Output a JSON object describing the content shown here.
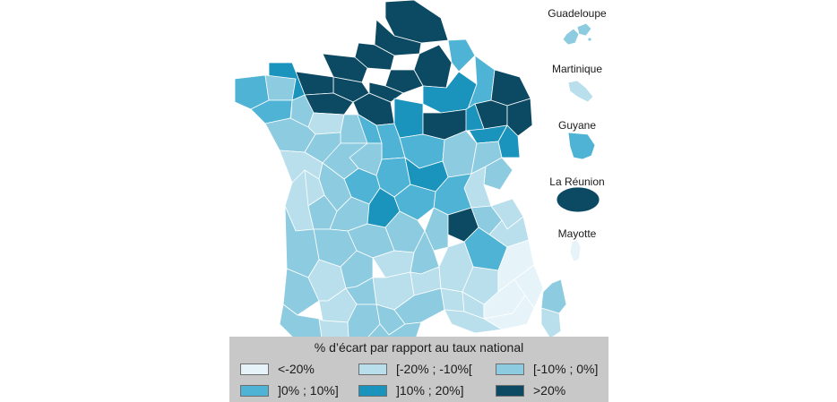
{
  "territories": [
    {
      "name": "Guadeloupe",
      "class_index": 2
    },
    {
      "name": "Martinique",
      "class_index": 1
    },
    {
      "name": "Guyane",
      "class_index": 3
    },
    {
      "name": "La Réunion",
      "class_index": 5
    },
    {
      "name": "Mayotte",
      "class_index": 0
    }
  ],
  "legend": {
    "title": "% d’écart par rapport au taux national",
    "classes": [
      {
        "label": "<-20%",
        "color": "#e6f3f8"
      },
      {
        "label": "[-20% ; -10%[",
        "color": "#b9dfec"
      },
      {
        "label": "[-10% ; 0%]",
        "color": "#8dcbe0"
      },
      {
        "label": "]0% ; 10%]",
        "color": "#4fb3d5"
      },
      {
        "label": "]10% ; 20%]",
        "color": "#1a93bd"
      },
      {
        "label": ">20%",
        "color": "#0c4a63"
      }
    ]
  }
}
